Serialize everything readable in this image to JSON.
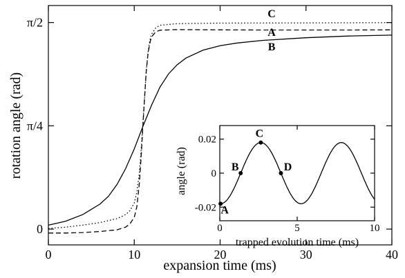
{
  "chart_data": [
    {
      "type": "line",
      "xlabel": "expansion time (ms)",
      "ylabel": "rotation angle (rad)",
      "xlim": [
        0,
        40
      ],
      "ylim": [
        -0.12,
        1.7
      ],
      "grid": false,
      "xticks": [
        0,
        10,
        20,
        30,
        40
      ],
      "xtick_labels": [
        "0",
        "10",
        "20",
        "30",
        "40"
      ],
      "yticks": [
        0,
        0.785398,
        1.570796
      ],
      "ytick_labels": [
        "0",
        "π/4",
        "π/2"
      ],
      "series": [
        {
          "name": "A",
          "style": "dashed",
          "points": [
            [
              0,
              -0.03
            ],
            [
              2,
              -0.03
            ],
            [
              4,
              -0.026
            ],
            [
              6,
              -0.018
            ],
            [
              8,
              -0.005
            ],
            [
              9,
              0.015
            ],
            [
              9.5,
              0.04
            ],
            [
              10,
              0.09
            ],
            [
              10.3,
              0.17
            ],
            [
              10.6,
              0.35
            ],
            [
              10.8,
              0.55
            ],
            [
              11.0,
              0.78
            ],
            [
              11.2,
              1.0
            ],
            [
              11.4,
              1.2
            ],
            [
              11.6,
              1.33
            ],
            [
              11.8,
              1.41
            ],
            [
              12.0,
              1.46
            ],
            [
              12.5,
              1.5
            ],
            [
              13,
              1.512
            ],
            [
              15,
              1.517
            ],
            [
              20,
              1.515
            ],
            [
              25,
              1.514
            ],
            [
              30,
              1.514
            ],
            [
              35,
              1.514
            ],
            [
              40,
              1.515
            ]
          ]
        },
        {
          "name": "B",
          "style": "solid",
          "points": [
            [
              0,
              0.03
            ],
            [
              2,
              0.06
            ],
            [
              4,
              0.11
            ],
            [
              6,
              0.19
            ],
            [
              7,
              0.25
            ],
            [
              8,
              0.34
            ],
            [
              9,
              0.46
            ],
            [
              10,
              0.61
            ],
            [
              11,
              0.78
            ],
            [
              12,
              0.94
            ],
            [
              13,
              1.08
            ],
            [
              14,
              1.18
            ],
            [
              15,
              1.25
            ],
            [
              16,
              1.3
            ],
            [
              18,
              1.36
            ],
            [
              20,
              1.395
            ],
            [
              22,
              1.415
            ],
            [
              25,
              1.435
            ],
            [
              30,
              1.455
            ],
            [
              35,
              1.468
            ],
            [
              40,
              1.475
            ]
          ]
        },
        {
          "name": "C",
          "style": "dotted",
          "points": [
            [
              0,
              0.005
            ],
            [
              2,
              0.015
            ],
            [
              4,
              0.03
            ],
            [
              6,
              0.05
            ],
            [
              8,
              0.08
            ],
            [
              9,
              0.11
            ],
            [
              9.5,
              0.14
            ],
            [
              10,
              0.2
            ],
            [
              10.3,
              0.28
            ],
            [
              10.6,
              0.43
            ],
            [
              10.8,
              0.6
            ],
            [
              11.0,
              0.8
            ],
            [
              11.2,
              1.0
            ],
            [
              11.4,
              1.2
            ],
            [
              11.6,
              1.34
            ],
            [
              11.8,
              1.43
            ],
            [
              12.0,
              1.48
            ],
            [
              12.5,
              1.53
            ],
            [
              13,
              1.55
            ],
            [
              15,
              1.562
            ],
            [
              20,
              1.566
            ],
            [
              30,
              1.568
            ],
            [
              40,
              1.57
            ]
          ]
        }
      ],
      "annotations": [
        {
          "text": "A",
          "x": 26,
          "y": 1.47
        },
        {
          "text": "B",
          "x": 26,
          "y": 1.36
        },
        {
          "text": "C",
          "x": 26,
          "y": 1.61
        }
      ]
    },
    {
      "type": "line",
      "xlabel": "trapped evolution time (ms)",
      "ylabel": "angle (rad)",
      "xlim": [
        0,
        10
      ],
      "ylim": [
        -0.028,
        0.028
      ],
      "grid": false,
      "xticks": [
        0,
        5,
        10
      ],
      "xtick_labels": [
        "0",
        "5",
        "10"
      ],
      "yticks": [
        -0.02,
        0,
        0.02
      ],
      "ytick_labels": [
        "-0.02",
        "0",
        "0.02"
      ],
      "series": [
        {
          "name": "",
          "style": "solid",
          "function": "sine",
          "amplitude": 0.018,
          "period_ms": 5.2,
          "phase_start_ms": 0.05,
          "x_range": [
            0,
            10
          ]
        }
      ],
      "markers": [
        {
          "label": "A",
          "x": 0.05,
          "y": -0.018
        },
        {
          "label": "B",
          "x": 1.35,
          "y": 0.0
        },
        {
          "label": "C",
          "x": 2.65,
          "y": 0.018
        },
        {
          "label": "D",
          "x": 3.95,
          "y": 0.0
        }
      ]
    }
  ]
}
